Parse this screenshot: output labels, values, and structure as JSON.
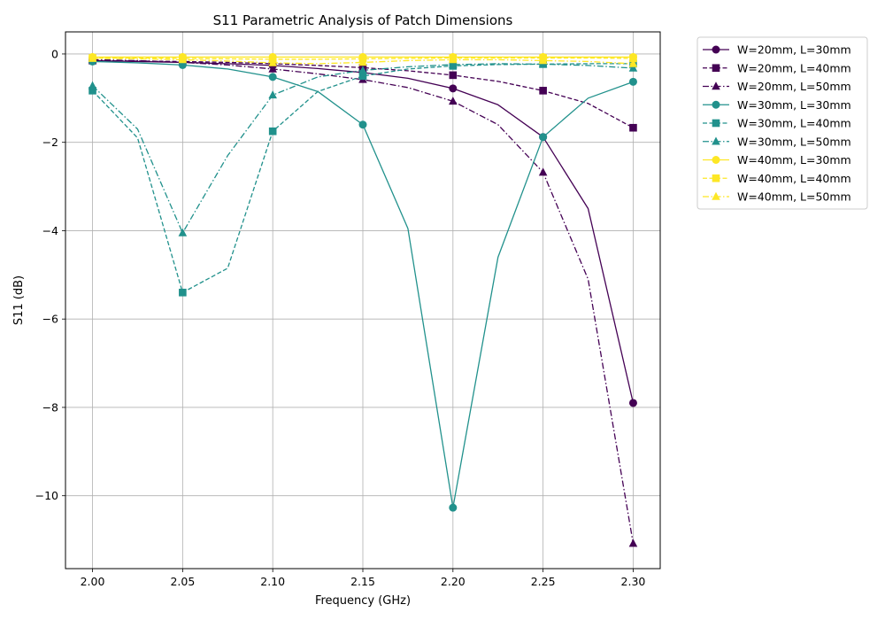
{
  "chart_data": {
    "type": "line",
    "title": "S11 Parametric Analysis of Patch Dimensions",
    "xlabel": "Frequency (GHz)",
    "ylabel": "S11 (dB)",
    "xlim": [
      1.985,
      2.315
    ],
    "ylim": [
      -11.65,
      0.5
    ],
    "xticks": [
      2.0,
      2.05,
      2.1,
      2.15,
      2.2,
      2.25,
      2.3
    ],
    "xtick_labels": [
      "2.00",
      "2.05",
      "2.10",
      "2.15",
      "2.20",
      "2.25",
      "2.30"
    ],
    "yticks": [
      0,
      -2,
      -4,
      -6,
      -8,
      -10
    ],
    "ytick_labels": [
      "0",
      "−2",
      "−4",
      "−6",
      "−8",
      "−10"
    ],
    "grid": true,
    "legend_position": "outside-right-top",
    "x": [
      2.0,
      2.025,
      2.05,
      2.075,
      2.1,
      2.125,
      2.15,
      2.175,
      2.2,
      2.225,
      2.25,
      2.275,
      2.3
    ],
    "series": [
      {
        "name": "W=20mm, L=30mm",
        "color": "#440154",
        "linestyle": "solid",
        "marker": "circle",
        "values": [
          -0.15,
          -0.17,
          -0.19,
          -0.22,
          -0.26,
          -0.33,
          -0.42,
          -0.55,
          -0.78,
          -1.15,
          -1.88,
          -3.5,
          -7.9
        ]
      },
      {
        "name": "W=20mm, L=40mm",
        "color": "#440154",
        "linestyle": "dashed",
        "marker": "square",
        "values": [
          -0.15,
          -0.16,
          -0.17,
          -0.19,
          -0.22,
          -0.26,
          -0.31,
          -0.38,
          -0.48,
          -0.62,
          -0.83,
          -1.12,
          -1.67
        ]
      },
      {
        "name": "W=20mm, L=50mm",
        "color": "#440154",
        "linestyle": "dashdot",
        "marker": "triangle",
        "values": [
          -0.13,
          -0.15,
          -0.19,
          -0.25,
          -0.34,
          -0.45,
          -0.58,
          -0.76,
          -1.07,
          -1.6,
          -2.68,
          -5.1,
          -11.08
        ]
      },
      {
        "name": "W=30mm, L=30mm",
        "color": "#21918c",
        "linestyle": "solid",
        "marker": "circle",
        "values": [
          -0.17,
          -0.2,
          -0.25,
          -0.34,
          -0.52,
          -0.85,
          -1.6,
          -3.95,
          -10.27,
          -4.6,
          -1.88,
          -1.0,
          -0.63
        ]
      },
      {
        "name": "W=30mm, L=40mm",
        "color": "#21918c",
        "linestyle": "dashed",
        "marker": "square",
        "values": [
          -0.83,
          -1.9,
          -5.4,
          -4.85,
          -1.75,
          -0.85,
          -0.5,
          -0.34,
          -0.27,
          -0.24,
          -0.23,
          -0.22,
          -0.22
        ]
      },
      {
        "name": "W=30mm, L=50mm",
        "color": "#21918c",
        "linestyle": "dashdot",
        "marker": "triangle",
        "values": [
          -0.72,
          -1.7,
          -4.05,
          -2.3,
          -0.93,
          -0.52,
          -0.37,
          -0.29,
          -0.24,
          -0.22,
          -0.23,
          -0.26,
          -0.32
        ]
      },
      {
        "name": "W=40mm, L=30mm",
        "color": "#fde725",
        "linestyle": "solid",
        "marker": "circle",
        "values": [
          -0.07,
          -0.07,
          -0.07,
          -0.07,
          -0.07,
          -0.07,
          -0.07,
          -0.07,
          -0.07,
          -0.07,
          -0.07,
          -0.07,
          -0.07
        ]
      },
      {
        "name": "W=40mm, L=40mm",
        "color": "#fde725",
        "linestyle": "dashed",
        "marker": "square",
        "values": [
          -0.09,
          -0.09,
          -0.1,
          -0.11,
          -0.12,
          -0.12,
          -0.11,
          -0.1,
          -0.09,
          -0.09,
          -0.09,
          -0.09,
          -0.1
        ]
      },
      {
        "name": "W=40mm, L=50mm",
        "color": "#fde725",
        "linestyle": "dashdot",
        "marker": "triangle",
        "values": [
          -0.1,
          -0.11,
          -0.13,
          -0.16,
          -0.2,
          -0.22,
          -0.19,
          -0.15,
          -0.13,
          -0.13,
          -0.15,
          -0.17,
          -0.22
        ]
      }
    ]
  }
}
